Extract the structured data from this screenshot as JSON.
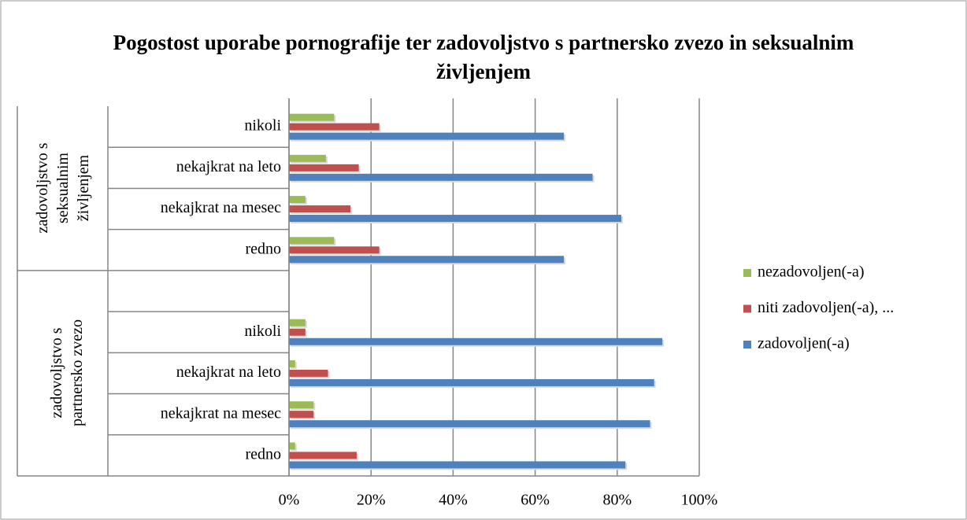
{
  "chart_data": {
    "type": "bar",
    "orientation": "horizontal",
    "title": "Pogostost uporabe pornografije ter zadovoljstvo s partnersko zvezo in seksualnim življenjem",
    "categories": [
      "nikoli",
      "nekajkrat na leto",
      "nekajkrat na mesec",
      "redno",
      null,
      "nikoli",
      "nekajkrat na leto",
      "nekajkrat na mesec",
      "redno"
    ],
    "groups": [
      {
        "label": "zadovoljstvo s seksualnim življenjem",
        "start": 0,
        "end": 3
      },
      {
        "label": "zadovoljstvo s partnersko zvezo",
        "start": 4,
        "end": 8
      }
    ],
    "series": [
      {
        "name": "zadovoljen(-a)",
        "color": "#4f81bd",
        "values": [
          67,
          74,
          81,
          67,
          null,
          91,
          89,
          88,
          82
        ]
      },
      {
        "name": "niti zadovoljen(-a), ...",
        "color": "#c0504d",
        "values": [
          22,
          17,
          15,
          22,
          null,
          4,
          9.5,
          6,
          16.5
        ]
      },
      {
        "name": "nezadovoljen(-a)",
        "color": "#9bbb59",
        "values": [
          11,
          9,
          4,
          11,
          null,
          4,
          1.5,
          6,
          1.5
        ]
      }
    ],
    "xlim": [
      0,
      100
    ],
    "xticks": [
      {
        "value": 0,
        "label": "0%"
      },
      {
        "value": 20,
        "label": "20%"
      },
      {
        "value": 40,
        "label": "40%"
      },
      {
        "value": 60,
        "label": "60%"
      },
      {
        "value": 80,
        "label": "80%"
      },
      {
        "value": 100,
        "label": "100%"
      }
    ],
    "grid": true,
    "legend": "right"
  }
}
